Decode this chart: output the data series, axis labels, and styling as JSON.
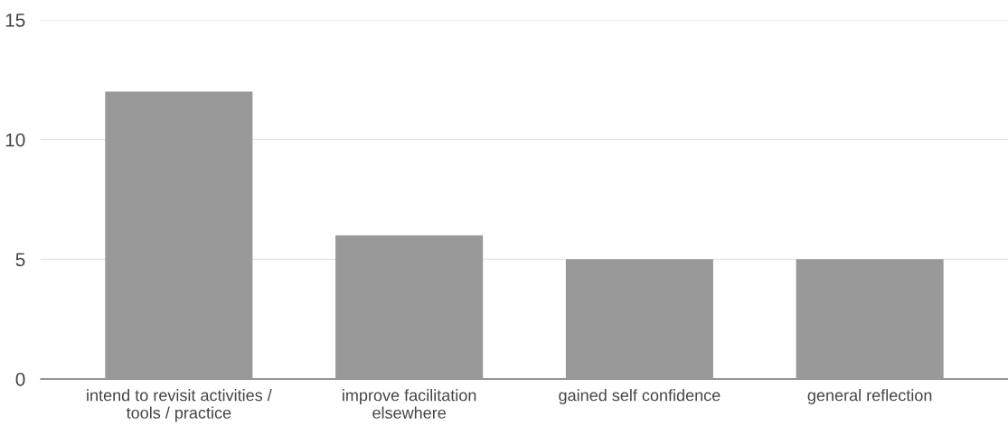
{
  "chart_data": {
    "type": "bar",
    "categories": [
      "intend to revisit activities /\ntools / practice",
      "improve facilitation\nelsewhere",
      "gained self confidence",
      "general reflection"
    ],
    "values": [
      12,
      6,
      5,
      5
    ],
    "color": "#999999",
    "ylim": [
      0,
      15
    ],
    "yticks": [
      0,
      5,
      10,
      15
    ],
    "grid": "y",
    "legend": false
  }
}
